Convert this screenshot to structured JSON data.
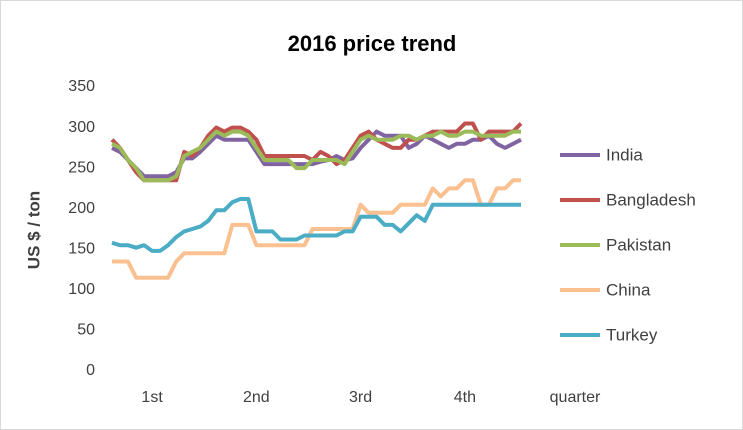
{
  "chart_data": {
    "type": "line",
    "title": "2016 price trend",
    "x_label": "quarter",
    "y_label": "US $ / ton",
    "categories": [
      null,
      null,
      null,
      null,
      null,
      "1st",
      null,
      null,
      null,
      null,
      null,
      null,
      null,
      null,
      null,
      null,
      null,
      null,
      "2nd",
      null,
      null,
      null,
      null,
      null,
      null,
      null,
      null,
      null,
      null,
      null,
      null,
      "3rd",
      null,
      null,
      null,
      null,
      null,
      null,
      null,
      null,
      null,
      null,
      null,
      null,
      "4th",
      null,
      null,
      null,
      null,
      null,
      null,
      null
    ],
    "ylim": [
      0,
      350
    ],
    "yticks": [
      0,
      50,
      100,
      150,
      200,
      250,
      300,
      350
    ],
    "grid": false,
    "legend": "right",
    "series": [
      {
        "name": "India",
        "color": "#8064a2",
        "values": [
          275,
          270,
          260,
          250,
          240,
          240,
          240,
          240,
          245,
          262,
          262,
          270,
          280,
          290,
          285,
          285,
          285,
          285,
          270,
          255,
          255,
          255,
          255,
          255,
          255,
          255,
          258,
          260,
          265,
          260,
          262,
          275,
          285,
          295,
          290,
          290,
          290,
          275,
          280,
          290,
          285,
          280,
          275,
          280,
          280,
          285,
          285,
          290,
          280,
          275,
          280,
          285
        ]
      },
      {
        "name": "Bangladesh",
        "color": "#c0504d",
        "values": [
          285,
          275,
          260,
          245,
          235,
          235,
          235,
          235,
          235,
          270,
          265,
          275,
          290,
          300,
          295,
          300,
          300,
          295,
          285,
          265,
          265,
          265,
          265,
          265,
          265,
          260,
          270,
          265,
          255,
          260,
          275,
          290,
          295,
          285,
          280,
          275,
          275,
          285,
          285,
          290,
          295,
          295,
          295,
          295,
          305,
          305,
          285,
          295,
          295,
          295,
          295,
          305
        ]
      },
      {
        "name": "Pakistan",
        "color": "#9bbb59",
        "values": [
          280,
          275,
          260,
          250,
          235,
          235,
          235,
          235,
          240,
          265,
          270,
          275,
          285,
          295,
          290,
          295,
          295,
          290,
          275,
          260,
          260,
          260,
          260,
          250,
          250,
          260,
          260,
          260,
          260,
          255,
          270,
          285,
          290,
          285,
          285,
          285,
          290,
          290,
          285,
          290,
          290,
          295,
          290,
          290,
          295,
          295,
          290,
          290,
          290,
          290,
          295,
          295
        ]
      },
      {
        "name": "China",
        "color": "#fac090",
        "values": [
          135,
          135,
          135,
          115,
          115,
          115,
          115,
          115,
          135,
          145,
          145,
          145,
          145,
          145,
          145,
          180,
          180,
          180,
          155,
          155,
          155,
          155,
          155,
          155,
          155,
          175,
          175,
          175,
          175,
          175,
          175,
          205,
          195,
          195,
          195,
          195,
          205,
          205,
          205,
          205,
          225,
          215,
          225,
          225,
          235,
          235,
          205,
          205,
          225,
          225,
          235,
          235
        ]
      },
      {
        "name": "Turkey",
        "color": "#4bacc6",
        "values": [
          158,
          155,
          155,
          152,
          155,
          148,
          148,
          155,
          165,
          172,
          175,
          178,
          185,
          198,
          198,
          208,
          212,
          212,
          172,
          172,
          172,
          162,
          162,
          162,
          167,
          167,
          167,
          167,
          167,
          172,
          172,
          190,
          190,
          190,
          180,
          180,
          172,
          182,
          192,
          185,
          205,
          205,
          205,
          205,
          205,
          205,
          205,
          205,
          205,
          205,
          205,
          205
        ]
      }
    ]
  }
}
